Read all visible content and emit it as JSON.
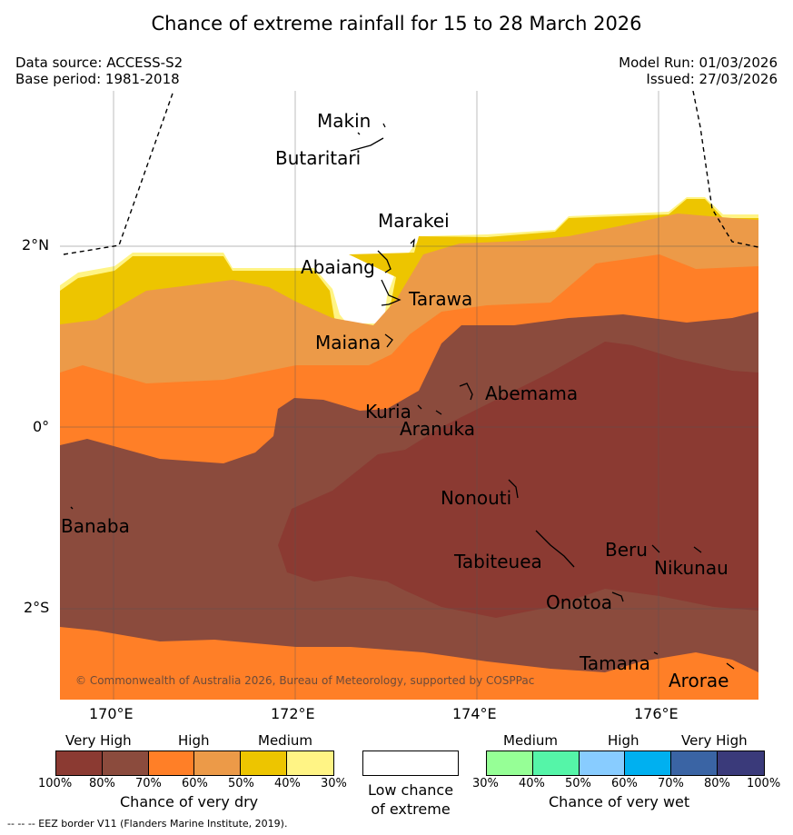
{
  "title": "Chance of extreme rainfall for 15 to 28 March 2026",
  "meta": {
    "data_source": "Data source: ACCESS-S2",
    "base_period": "Base period: 1981-2018",
    "model_run": "Model Run: 01/03/2026",
    "issued": "Issued: 27/03/2026"
  },
  "axes": {
    "y_ticks": [
      "2°N",
      "0°",
      "2°S"
    ],
    "x_ticks": [
      "170°E",
      "172°E",
      "174°E",
      "176°E"
    ]
  },
  "places": [
    {
      "name": "Makin"
    },
    {
      "name": "Butaritari"
    },
    {
      "name": "Marakei"
    },
    {
      "name": "Abaiang"
    },
    {
      "name": "Tarawa"
    },
    {
      "name": "Maiana"
    },
    {
      "name": "Abemama"
    },
    {
      "name": "Kuria"
    },
    {
      "name": "Aranuka"
    },
    {
      "name": "Nonouti"
    },
    {
      "name": "Banaba"
    },
    {
      "name": "Tabiteuea"
    },
    {
      "name": "Beru"
    },
    {
      "name": "Nikunau"
    },
    {
      "name": "Onotoa"
    },
    {
      "name": "Tamana"
    },
    {
      "name": "Arorae"
    }
  ],
  "copyright": "© Commonwealth of Australia 2026, Bureau of Meteorology, supported by COSPPac",
  "legend": {
    "dry": {
      "headers": [
        "Very High",
        "High",
        "Medium"
      ],
      "colors": [
        "#8b3a32",
        "#8b4b3d",
        "#ff7f27",
        "#ec9a48",
        "#edc500",
        "#fff485"
      ],
      "ticks": [
        "100%",
        "80%",
        "70%",
        "60%",
        "50%",
        "40%",
        "30%"
      ],
      "caption": "Chance of very dry"
    },
    "low": {
      "line1": "Low chance",
      "line2": "of extreme"
    },
    "wet": {
      "headers": [
        "Medium",
        "High",
        "Very High"
      ],
      "colors": [
        "#96ff96",
        "#55f5a8",
        "#88ccff",
        "#00b0f0",
        "#3a64a4",
        "#3a3a7a"
      ],
      "ticks": [
        "30%",
        "40%",
        "50%",
        "60%",
        "70%",
        "80%",
        "100%"
      ],
      "caption": "Chance of very wet"
    }
  },
  "footer": "--  --  -- EEZ border V11 (Flanders Marine Institute, 2019)."
}
